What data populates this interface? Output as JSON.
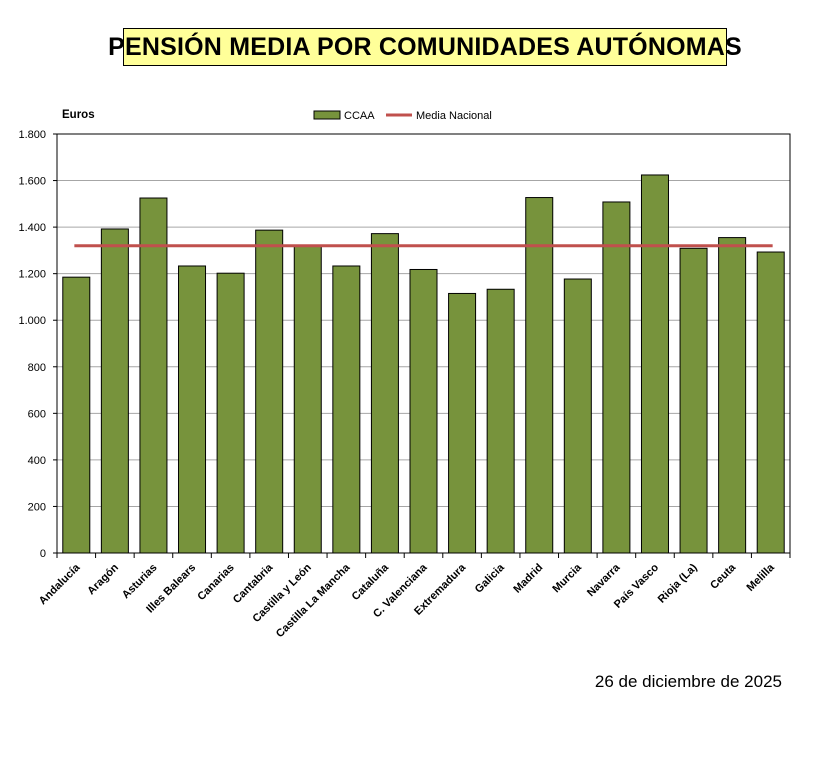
{
  "title": "PENSIÓN MEDIA POR COMUNIDADES AUTÓNOMAS",
  "date": "26 de diciembre de 2025",
  "colors": {
    "bar": "#77933c",
    "bar_border": "#000000",
    "mean_line": "#c0504d",
    "title_bg": "#ffff99",
    "grid": "#a6a6a6"
  },
  "chart_data": {
    "type": "bar",
    "title": "PENSIÓN MEDIA POR COMUNIDADES AUTÓNOMAS",
    "ylabel": "Euros",
    "xlabel": "",
    "ylim": [
      0,
      1800
    ],
    "yticks": [
      0,
      200,
      400,
      600,
      800,
      1000,
      1200,
      1400,
      1600,
      1800
    ],
    "ytick_labels": [
      "0",
      "200",
      "400",
      "600",
      "800",
      "1.000",
      "1.200",
      "1.400",
      "1.600",
      "1.800"
    ],
    "grid": true,
    "legend_position": "top-center",
    "legend": [
      "CCAA",
      "Media Nacional"
    ],
    "categories": [
      "Andalucía",
      "Aragón",
      "Asturias",
      "Illes Balears",
      "Canarias",
      "Cantabria",
      "Castilla y León",
      "Castilla La Mancha",
      "Cataluña",
      "C. Valenciana",
      "Extremadura",
      "Galicia",
      "Madrid",
      "Murcia",
      "Navarra",
      "País Vasco",
      "Rioja (La)",
      "Ceuta",
      "Melilla"
    ],
    "series": [
      {
        "name": "CCAA",
        "type": "bar",
        "values": [
          1185,
          1392,
          1525,
          1233,
          1202,
          1387,
          1318,
          1233,
          1372,
          1218,
          1115,
          1133,
          1527,
          1177,
          1508,
          1624,
          1309,
          1355,
          1293
        ]
      },
      {
        "name": "Media Nacional",
        "type": "line",
        "value": 1320
      }
    ]
  }
}
